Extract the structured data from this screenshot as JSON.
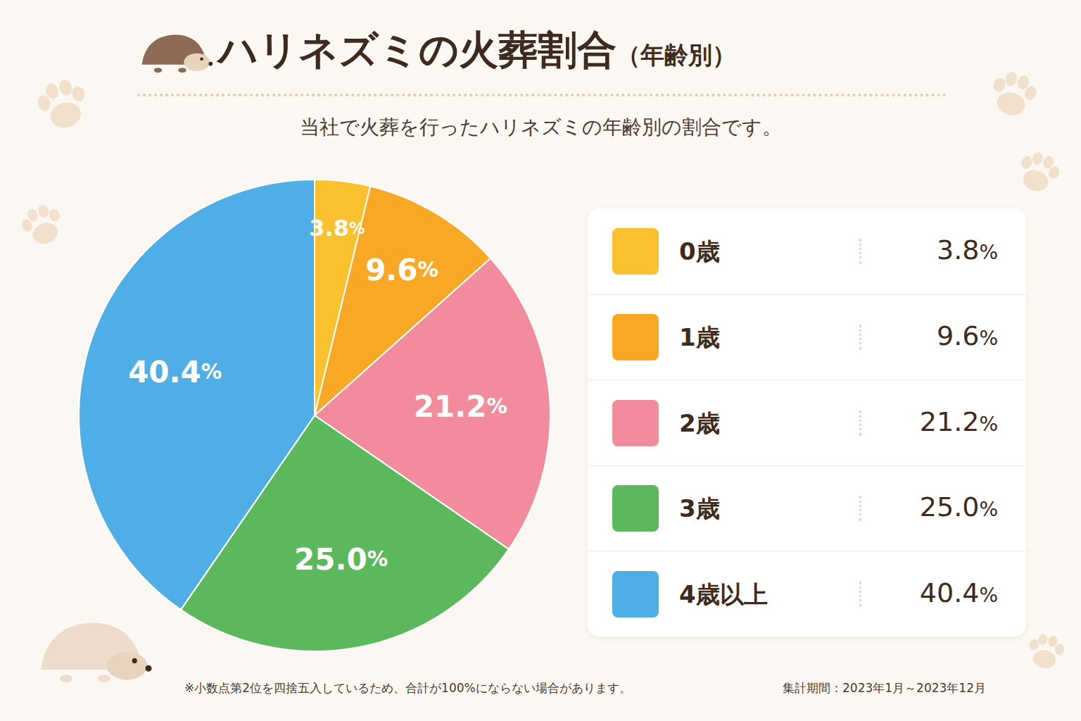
{
  "chart_data": {
    "type": "pie",
    "title": "ハリネズミの火葬割合",
    "title_suffix": "（年齢別）",
    "subtitle": "当社で火葬を行ったハリネズミの年齢別の割合です。",
    "categories": [
      "0歳",
      "1歳",
      "2歳",
      "3歳",
      "4歳以上"
    ],
    "values": [
      3.8,
      9.6,
      21.2,
      25.0,
      40.4
    ],
    "value_labels": [
      "3.8%",
      "9.6%",
      "21.2%",
      "25.0%",
      "40.4%"
    ],
    "colors": [
      "#fbc02d",
      "#f9a825",
      "#f28b9b",
      "#5cb85c",
      "#4faee6"
    ],
    "data_labels": true,
    "legend": "right",
    "note": "※小数点第2位を四捨五入しているため、合計が100%にならない場合があります。",
    "period": "集計期間：2023年1月～2023年12月"
  }
}
